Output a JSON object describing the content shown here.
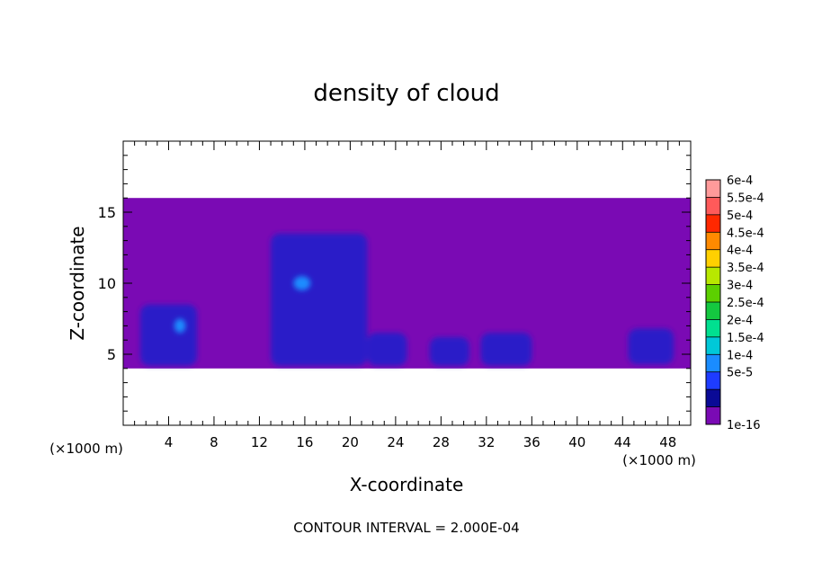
{
  "chart_data": {
    "type": "heatmap",
    "title": "density of cloud",
    "xlabel": "X-coordinate",
    "ylabel": "Z-coordinate",
    "x_unit_left": "(×1000 m)",
    "x_unit_right": "(×1000 m)",
    "xlim": [
      0,
      50
    ],
    "ylim": [
      0,
      20
    ],
    "x_ticks": [
      4,
      8,
      12,
      16,
      20,
      24,
      28,
      32,
      36,
      40,
      44,
      48
    ],
    "y_ticks": [
      5,
      10,
      15
    ],
    "footer": "CONTOUR INTERVAL = 2.000E-04",
    "colorbar": {
      "labels": [
        "6e-4",
        "5.5e-4",
        "5e-4",
        "4.5e-4",
        "4e-4",
        "3.5e-4",
        "3e-4",
        "2.5e-4",
        "2e-4",
        "1.5e-4",
        "1e-4",
        "5e-5",
        "1e-16"
      ],
      "colors": [
        "#ff9a9a",
        "#ff5a5a",
        "#ff2800",
        "#ff8a00",
        "#ffd000",
        "#b8e800",
        "#5cd000",
        "#14c840",
        "#00e090",
        "#00c8d8",
        "#1a8cff",
        "#1e3cff",
        "#0a0a96",
        "#7a0ab4"
      ]
    },
    "cloud_layers": [
      {
        "level": "1e-16",
        "color": "#7a0ab4",
        "regions": [
          {
            "x": [
              0,
              50
            ],
            "z": [
              4.0,
              16.0
            ]
          }
        ]
      },
      {
        "level": "5e-5",
        "color": "#2a1cc8",
        "regions": [
          {
            "x": [
              1.5,
              6.5
            ],
            "z": [
              4.2,
              8.5
            ]
          },
          {
            "x": [
              13.0,
              21.5
            ],
            "z": [
              4.2,
              13.5
            ]
          },
          {
            "x": [
              21.5,
              25.0
            ],
            "z": [
              4.2,
              6.5
            ]
          },
          {
            "x": [
              27.0,
              30.5
            ],
            "z": [
              4.2,
              6.2
            ]
          },
          {
            "x": [
              31.5,
              36.0
            ],
            "z": [
              4.2,
              6.5
            ]
          },
          {
            "x": [
              44.5,
              48.5
            ],
            "z": [
              4.3,
              6.8
            ]
          }
        ]
      },
      {
        "level": "1e-4",
        "color": "#1a8cff",
        "regions": [
          {
            "x": [
              4.5,
              5.5
            ],
            "z": [
              6.5,
              7.5
            ]
          },
          {
            "x": [
              15.0,
              16.5
            ],
            "z": [
              9.5,
              10.5
            ]
          }
        ]
      }
    ]
  }
}
